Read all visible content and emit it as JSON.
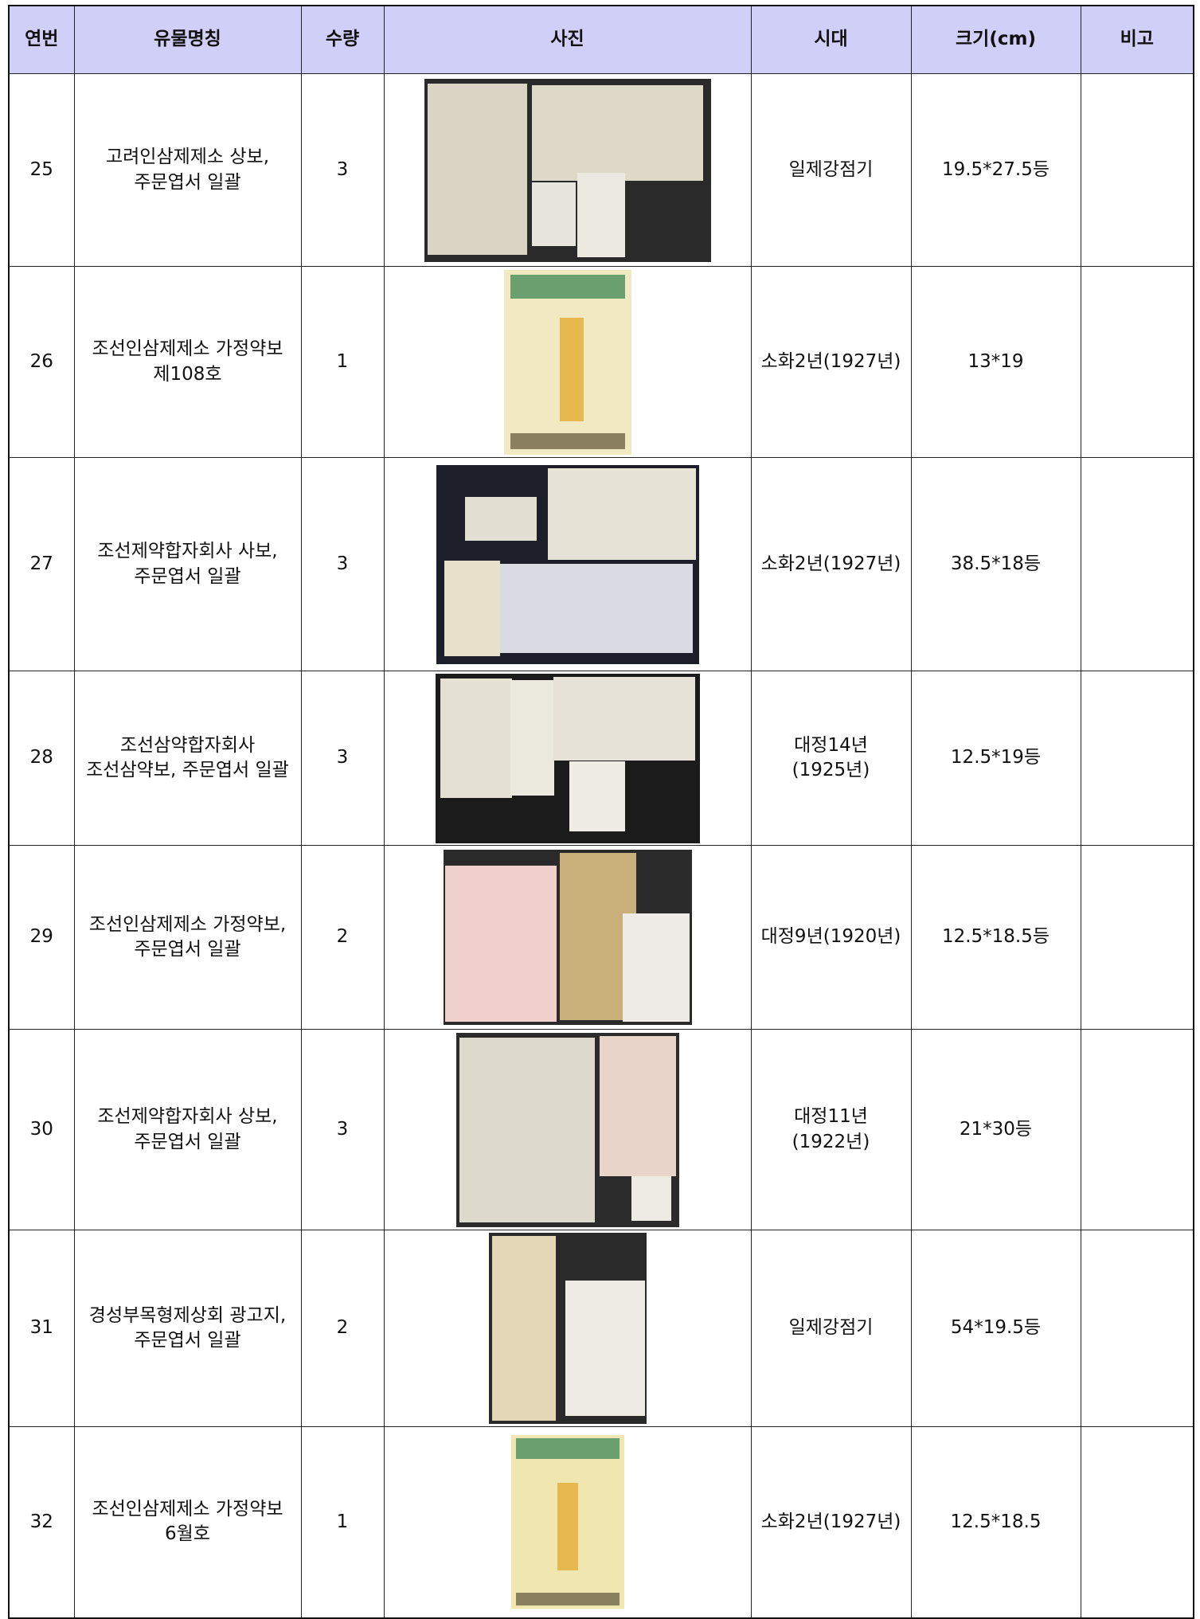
{
  "table": {
    "header": [
      "연번",
      "유물명칭",
      "수량",
      "사진",
      "시대",
      "크기(cm)",
      "비고"
    ],
    "rows": [
      {
        "no": "25",
        "name": "고려인삼제제소 상보, 주문엽서 일괄",
        "qty": "3",
        "period": "일제강점기",
        "size": "19.5*27.5등"
      },
      {
        "no": "26",
        "name": "조선인삼제제소 가정약보 제108호",
        "qty": "1",
        "period": "소화2년(1927년)",
        "size": "13*19"
      },
      {
        "no": "27",
        "name": "조선제약합자회사 사보, 주문엽서 일괄",
        "qty": "3",
        "period": "소화2년(1927년)",
        "size": "38.5*18등"
      },
      {
        "no": "28",
        "name": "조선삼약합자회사 조선삼약보, 주문엽서 일괄",
        "qty": "3",
        "period": "대정14년(1925년)",
        "size": "12.5*19등"
      },
      {
        "no": "29",
        "name": "조선인삼제제소 가정약보, 주문엽서 일괄",
        "qty": "2",
        "period": "대정9년(1920년)",
        "size": "12.5*18.5등"
      },
      {
        "no": "30",
        "name": "조선제약합자회사 상보, 주문엽서 일괄",
        "qty": "3",
        "period": "대정11년(1922년)",
        "size": "21*30등"
      },
      {
        "no": "31",
        "name": "경성부목형제상회 광고지, 주문엽서 일괄",
        "qty": "2",
        "period": "일제강점기",
        "size": "54*19.5등"
      },
      {
        "no": "32",
        "name": "조선인삼제제소 가정약보 6월호",
        "qty": "1",
        "period": "소화2년(1927년)",
        "size": "12.5*18.5"
      }
    ]
  }
}
